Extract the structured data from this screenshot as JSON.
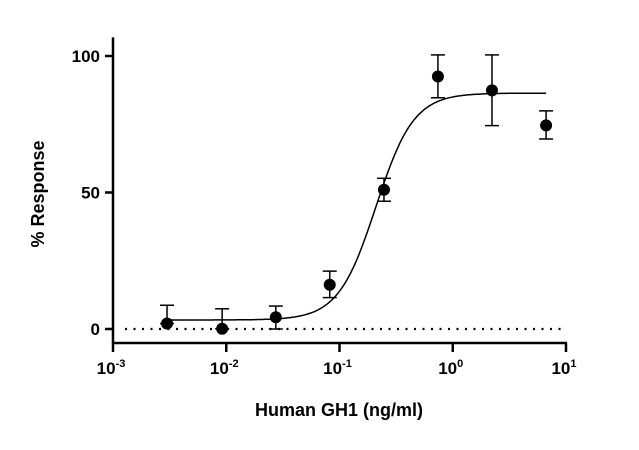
{
  "chart_data": {
    "type": "scatter",
    "xlabel": "Human GH1 (ng/ml)",
    "ylabel": "% Response",
    "xscale": "log",
    "xlim": [
      0.001,
      10
    ],
    "ylim": [
      0,
      105
    ],
    "xticks": [
      {
        "base": "10",
        "exp": "-3",
        "value": 0.001
      },
      {
        "base": "10",
        "exp": "-2",
        "value": 0.01
      },
      {
        "base": "10",
        "exp": "-1",
        "value": 0.1
      },
      {
        "base": "10",
        "exp": "0",
        "value": 1
      },
      {
        "base": "10",
        "exp": "1",
        "value": 10
      }
    ],
    "yticks": [
      {
        "label": "0",
        "value": 0
      },
      {
        "label": "50",
        "value": 50
      },
      {
        "label": "100",
        "value": 100
      }
    ],
    "grid": false,
    "points": [
      {
        "x": 0.003,
        "y": 2.0,
        "err_low": 2.0,
        "err_high": 8.7
      },
      {
        "x": 0.0092,
        "y": 0.1,
        "err_low": 0.1,
        "err_high": 7.4
      },
      {
        "x": 0.0274,
        "y": 4.3,
        "err_low": 0.0,
        "err_high": 8.4
      },
      {
        "x": 0.082,
        "y": 16.2,
        "err_low": 11.5,
        "err_high": 21.2
      },
      {
        "x": 0.247,
        "y": 51.0,
        "err_low": 46.8,
        "err_high": 55.2
      },
      {
        "x": 0.74,
        "y": 92.5,
        "err_low": 84.7,
        "err_high": 100.4
      },
      {
        "x": 2.22,
        "y": 87.4,
        "err_low": 74.5,
        "err_high": 100.4
      },
      {
        "x": 6.67,
        "y": 74.6,
        "err_low": 69.6,
        "err_high": 79.9
      }
    ],
    "fit_curve": {
      "model": "four-parameter logistic",
      "bottom": 3.3,
      "top": 86.4,
      "ec50": 0.21,
      "hill": 2.6,
      "x_range": [
        0.003,
        6.67
      ]
    },
    "reference_line": {
      "y": 0,
      "style": "dotted"
    },
    "marker_color": "#000000"
  }
}
